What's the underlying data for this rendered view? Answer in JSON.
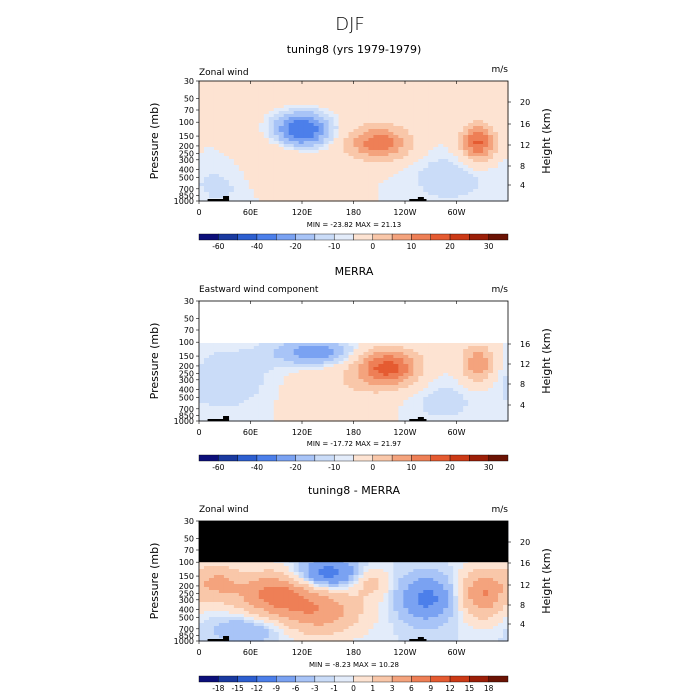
{
  "figure": {
    "season_title": "DJF",
    "colors": {
      "blue": [
        "#0c0f7a",
        "#1a3aa0",
        "#2d5fd0",
        "#4c7fea",
        "#7aa2f2",
        "#a8c4f7",
        "#cadcf8",
        "#e3ecfa"
      ],
      "red": [
        "#fde3d2",
        "#f9c7a9",
        "#f4a37d",
        "#ee7f56",
        "#e55b31",
        "#cc3a16",
        "#9c1f08",
        "#6b1304"
      ]
    }
  },
  "chart_data": [
    {
      "type": "heatmap",
      "title": "tuning8 (yrs 1979-1979)",
      "variable_label": "Zonal wind",
      "units": "m/s",
      "ylabel": "Pressure (mb)",
      "ylabel_right": "Height (km)",
      "x_ticks": [
        "0",
        "60E",
        "120E",
        "180",
        "120W",
        "60W"
      ],
      "y_ticks": [
        "30",
        "50",
        "70",
        "100",
        "150",
        "200",
        "250",
        "300",
        "400",
        "500",
        "700",
        "850",
        "1000"
      ],
      "y_ticks_right": [
        "20",
        "16",
        "12",
        "8",
        "4"
      ],
      "stats": "MIN = -23.82 MAX = 21.13",
      "min": -23.82,
      "max": 21.13,
      "colorbar_labels": [
        "-60",
        "-40",
        "-20",
        "-10",
        "0",
        "10",
        "20",
        "30"
      ],
      "features": [
        {
          "lon": 120,
          "p": 120,
          "value": -23.82
        },
        {
          "lon": 205,
          "p": 180,
          "value": 18
        },
        {
          "lon": 325,
          "p": 180,
          "value": 21.13
        }
      ]
    },
    {
      "type": "heatmap",
      "title": "MERRA",
      "variable_label": "Eastward wind component",
      "units": "m/s",
      "ylabel": "Pressure (mb)",
      "ylabel_right": "Height (km)",
      "x_ticks": [
        "0",
        "60E",
        "120E",
        "180",
        "120W",
        "60W"
      ],
      "y_ticks": [
        "30",
        "50",
        "70",
        "100",
        "150",
        "200",
        "250",
        "300",
        "400",
        "500",
        "700",
        "850",
        "1000"
      ],
      "y_ticks_right": [
        "16",
        "12",
        "8",
        "4"
      ],
      "stats": "MIN = -17.72 MAX = 21.97",
      "min": -17.72,
      "max": 21.97,
      "colorbar_labels": [
        "-60",
        "-40",
        "-20",
        "-10",
        "0",
        "10",
        "20",
        "30"
      ],
      "features": [
        {
          "lon": 135,
          "p": 130,
          "value": -17.72
        },
        {
          "lon": 220,
          "p": 210,
          "value": 21.97
        },
        {
          "lon": 325,
          "p": 190,
          "value": 15
        }
      ]
    },
    {
      "type": "heatmap",
      "title": "tuning8 - MERRA",
      "variable_label": "Zonal wind",
      "units": "m/s",
      "ylabel": "Pressure (mb)",
      "ylabel_right": "Height (km)",
      "x_ticks": [
        "0",
        "60E",
        "120E",
        "180",
        "120W",
        "60W"
      ],
      "y_ticks": [
        "30",
        "50",
        "70",
        "100",
        "150",
        "200",
        "250",
        "300",
        "400",
        "500",
        "700",
        "850",
        "1000"
      ],
      "y_ticks_right": [
        "20",
        "16",
        "12",
        "8",
        "4"
      ],
      "stats": "MIN = -8.23 MAX = 10.28",
      "min": -8.23,
      "max": 10.28,
      "colorbar_labels": [
        "-18",
        "-15",
        "-12",
        "-9",
        "-6",
        "-3",
        "-1",
        "0",
        "1",
        "3",
        "6",
        "9",
        "12",
        "15",
        "18"
      ],
      "features": [
        {
          "lon": 150,
          "p": 140,
          "value": -8.23
        },
        {
          "lon": 90,
          "p": 250,
          "value": 10.28
        },
        {
          "lon": 260,
          "p": 300,
          "value": -7
        },
        {
          "lon": 330,
          "p": 250,
          "value": 9
        }
      ]
    }
  ]
}
